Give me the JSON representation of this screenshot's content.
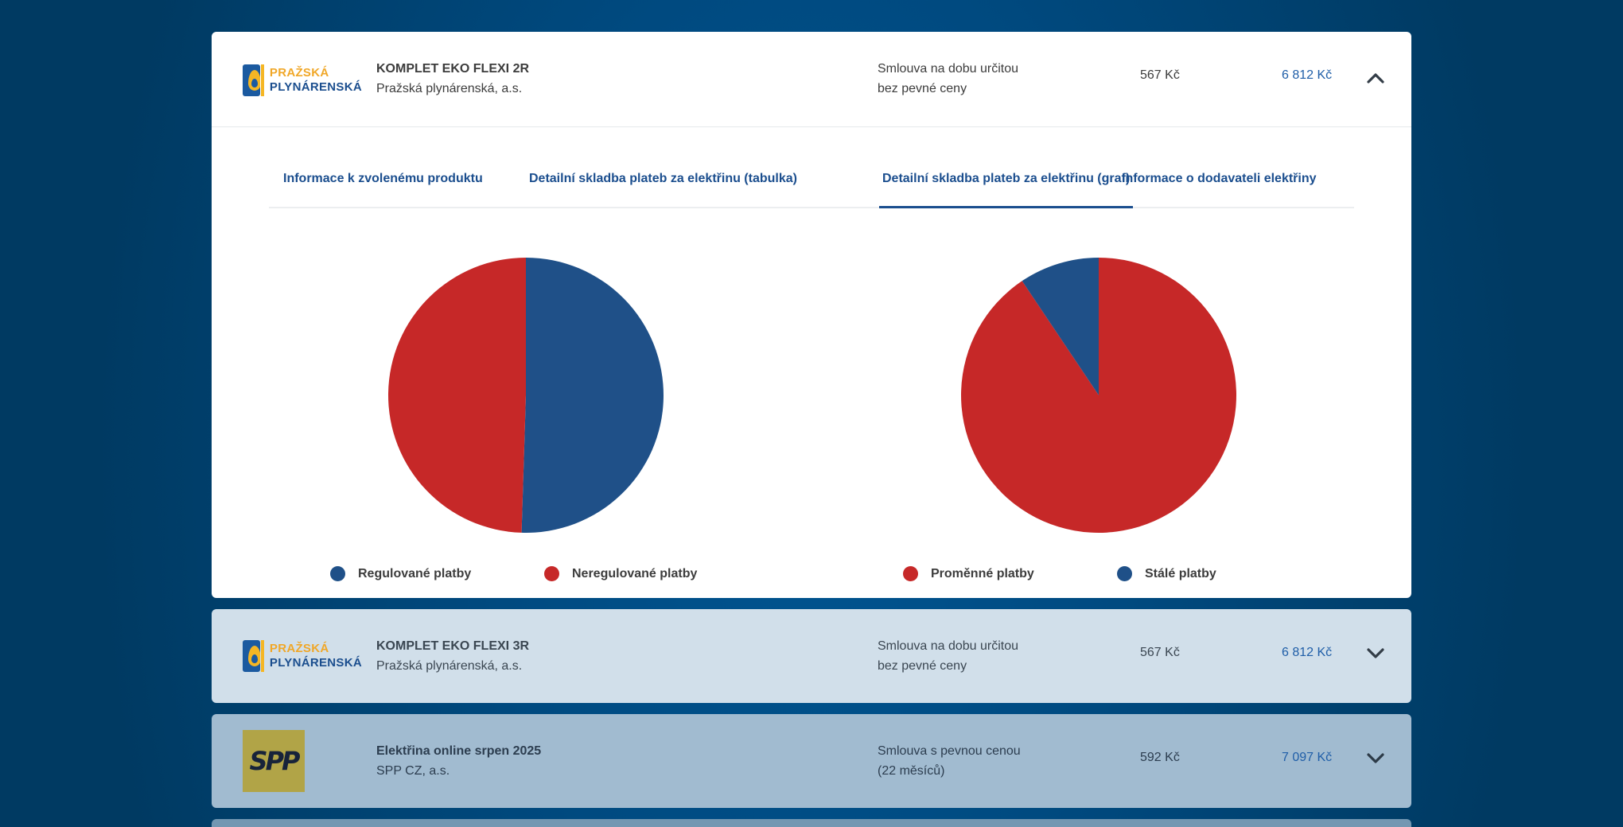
{
  "colors": {
    "blue": "#1f5088",
    "red": "#c62828",
    "accent": "#1b4e8e",
    "price_blue": "#1f5ea8"
  },
  "offers": [
    {
      "logo": {
        "type": "prazska-plynarenska",
        "line1": "PRAŽSKÁ",
        "line2": "PLYNÁRENSKÁ"
      },
      "product_name": "KOMPLET EKO FLEXI 2R",
      "supplier": "Pražská plynárenská, a.s.",
      "contract_line1": "Smlouva na dobu určitou",
      "contract_line2": "bez pevné ceny",
      "monthly_price": "567 Kč",
      "yearly_price": "6 812 Kč",
      "toggle_icon": "chevron-up-icon",
      "expanded": true
    },
    {
      "logo": {
        "type": "prazska-plynarenska",
        "line1": "PRAŽSKÁ",
        "line2": "PLYNÁRENSKÁ"
      },
      "product_name": "KOMPLET EKO FLEXI 3R",
      "supplier": "Pražská plynárenská, a.s.",
      "contract_line1": "Smlouva na dobu určitou",
      "contract_line2": "bez pevné ceny",
      "monthly_price": "567 Kč",
      "yearly_price": "6 812 Kč",
      "toggle_icon": "chevron-down-icon",
      "expanded": false
    },
    {
      "logo": {
        "type": "spp",
        "text": "SPP"
      },
      "product_name": "Elektřina online srpen 2025",
      "supplier": "SPP CZ, a.s.",
      "contract_line1": "Smlouva s pevnou cenou",
      "contract_line2": "(22 měsíců)",
      "monthly_price": "592 Kč",
      "yearly_price": "7 097 Kč",
      "toggle_icon": "chevron-down-icon",
      "expanded": false
    }
  ],
  "tabs": [
    {
      "label": "Informace k zvolenému produktu",
      "active": false
    },
    {
      "label": "Detailní skladba plateb za elektřinu (tabulka)",
      "active": false
    },
    {
      "label": "Detailní skladba plateb za elektřinu (graf)",
      "active": true
    },
    {
      "label": "Informace o dodavateli elektřiny",
      "active": false
    }
  ],
  "chart_data": [
    {
      "type": "pie",
      "title": "",
      "start_angle": "top",
      "direction": "clockwise",
      "legend_position": "bottom",
      "slices": [
        {
          "label": "Regulované platby",
          "value": 50.5,
          "color": "#1f5088"
        },
        {
          "label": "Neregulované platby",
          "value": 49.5,
          "color": "#c62828"
        }
      ]
    },
    {
      "type": "pie",
      "title": "",
      "start_angle": "top",
      "direction": "clockwise",
      "legend_position": "bottom",
      "slices": [
        {
          "label": "Proměnné platby",
          "value": 90.6,
          "color": "#c62828"
        },
        {
          "label": "Stálé platby",
          "value": 9.4,
          "color": "#1f5088"
        }
      ]
    }
  ]
}
